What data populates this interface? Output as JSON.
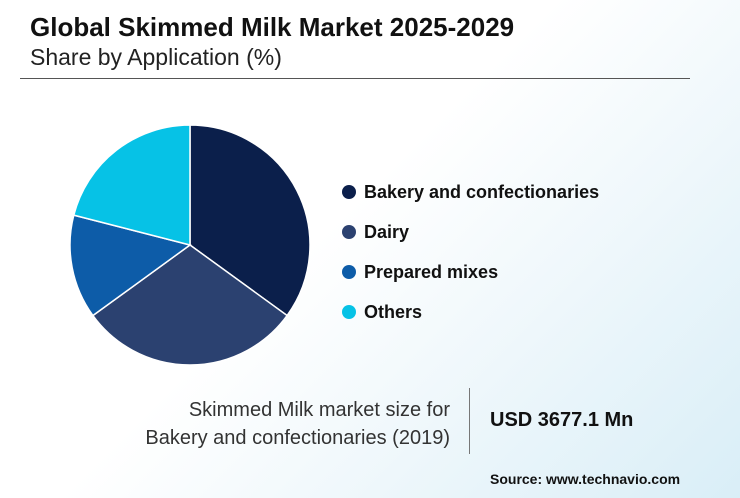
{
  "chart_data": {
    "type": "pie",
    "title": "Global Skimmed Milk Market 2025-2029",
    "subtitle": "Share by Application (%)",
    "series": [
      {
        "name": "Bakery and confectionaries",
        "value": 35,
        "color": "#0b1f4b"
      },
      {
        "name": "Dairy",
        "value": 30,
        "color": "#2b4170"
      },
      {
        "name": "Prepared mixes",
        "value": 14,
        "color": "#0d5ca8"
      },
      {
        "name": "Others",
        "value": 21,
        "color": "#06c2e6"
      }
    ],
    "legend_position": "right"
  },
  "market_size": {
    "label_line1": "Skimmed Milk market size for",
    "label_line2": "Bakery and confectionaries (2019)",
    "value": "USD 3677.1 Mn"
  },
  "source": "Source: www.technavio.com"
}
